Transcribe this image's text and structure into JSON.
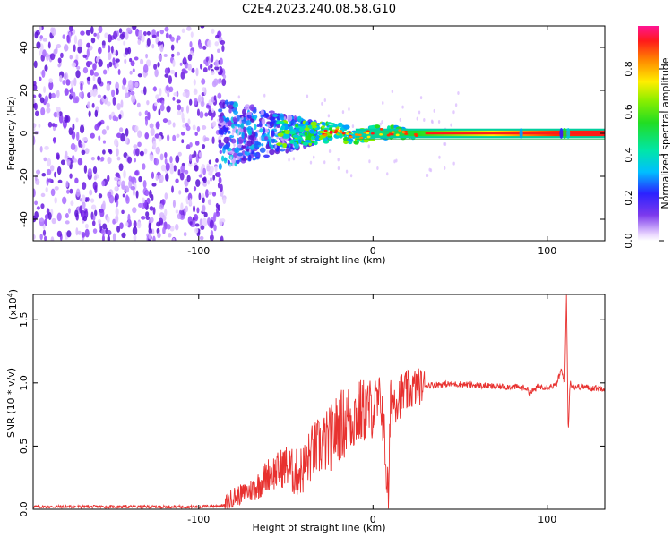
{
  "page": {
    "title": "C2E4.2023.240.08.58.G10"
  },
  "colorbar": {
    "label": "Normalized spectral amplitude",
    "ticks": [
      "0.0",
      "0.2",
      "0.4",
      "0.6",
      "0.8"
    ],
    "tick_values": [
      0.0,
      0.2,
      0.4,
      0.6,
      0.8
    ],
    "range": [
      0,
      1
    ],
    "colormap": "gist_rainbow (white to violet to blue to cyan to green to yellow to red to magenta)"
  },
  "chart_data": [
    {
      "type": "heatmap",
      "title": "",
      "xlabel": "Height of straight line (km)",
      "ylabel": "Frequency (Hz)",
      "xlim": [
        -195,
        133
      ],
      "ylim": [
        -50,
        50
      ],
      "xticks": [
        -100,
        0,
        100
      ],
      "xtick_labels": [
        "-100",
        "0",
        "100"
      ],
      "yticks": [
        -40,
        -20,
        0,
        20,
        40
      ],
      "ytick_labels": [
        "-40",
        "-20",
        "0",
        "20",
        "40"
      ],
      "features": [
        {
          "region_x": [
            -195,
            -85
          ],
          "frequency_y": [
            -50,
            50
          ],
          "amplitude": [
            0.0,
            0.15
          ]
        },
        {
          "region_x": [
            -85,
            -50
          ],
          "frequency_y": [
            -15,
            15
          ],
          "amplitude": [
            0.1,
            0.3
          ]
        },
        {
          "region_x": [
            -50,
            20
          ],
          "frequency_y": [
            -5,
            5
          ],
          "amplitude": [
            0.3,
            0.9
          ]
        },
        {
          "region_x": [
            20,
            133
          ],
          "frequency_y": [
            -2,
            2
          ],
          "amplitude": [
            0.9,
            1.0
          ]
        }
      ]
    },
    {
      "type": "line",
      "title": "",
      "xlabel": "Height of straight line (km)",
      "ylabel": "SNR (10 * v/v)",
      "multiplier_label": "(x10",
      "multiplier_exp": "4",
      "xlim": [
        -195,
        133
      ],
      "ylim": [
        0,
        1.7
      ],
      "xticks": [
        -100,
        0,
        100
      ],
      "xtick_labels": [
        "-100",
        "0",
        "100"
      ],
      "yticks": [
        0.0,
        0.5,
        1.0,
        1.5
      ],
      "ytick_labels": [
        "0.0",
        "0.5",
        "1.0",
        "1.5"
      ],
      "series": [
        {
          "color": "#e8312f",
          "x": [
            -195,
            -150,
            -100,
            -85,
            -80,
            -75,
            -70,
            -65,
            -60,
            -55,
            -50,
            -45,
            -40,
            -35,
            -30,
            -25,
            -20,
            -15,
            -10,
            -5,
            0,
            5,
            9,
            10,
            15,
            20,
            25,
            30,
            40,
            50,
            60,
            70,
            80,
            88,
            90,
            95,
            100,
            105,
            108,
            110,
            111,
            112,
            113,
            115,
            120,
            125,
            133
          ],
          "y": [
            0.02,
            0.02,
            0.02,
            0.03,
            0.1,
            0.12,
            0.15,
            0.2,
            0.28,
            0.3,
            0.35,
            0.28,
            0.32,
            0.45,
            0.5,
            0.55,
            0.65,
            0.7,
            0.75,
            0.78,
            0.8,
            0.85,
            0.05,
            0.85,
            0.9,
            0.93,
            0.97,
            0.98,
            0.99,
            0.99,
            0.98,
            0.97,
            0.97,
            0.96,
            0.92,
            0.97,
            0.97,
            0.98,
            1.1,
            1.0,
            1.7,
            0.6,
            1.0,
            0.97,
            0.97,
            0.96,
            0.96
          ]
        }
      ]
    }
  ]
}
